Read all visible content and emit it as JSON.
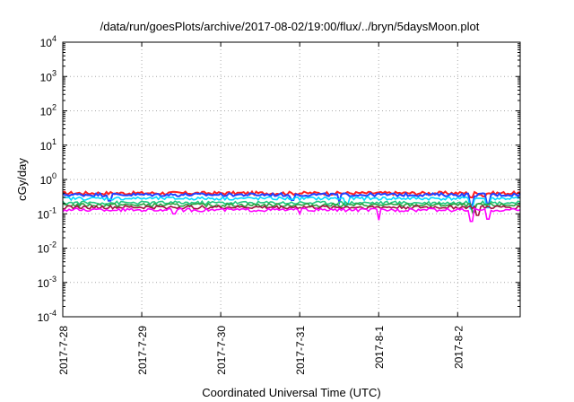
{
  "chart_data": {
    "type": "line",
    "title": "/data/run/goesPlots/archive/2017-08-02/19:00/flux/../bryn/5daysMoon.plot",
    "xlabel": "Coordinated Universal Time (UTC)",
    "ylabel": "cGy/day",
    "yscale": "log",
    "ylim": [
      0.0001,
      10000
    ],
    "y_ticks": [
      {
        "value": 0.0001,
        "base": "10",
        "exp": "-4"
      },
      {
        "value": 0.001,
        "base": "10",
        "exp": "-3"
      },
      {
        "value": 0.01,
        "base": "10",
        "exp": "-2"
      },
      {
        "value": 0.1,
        "base": "10",
        "exp": "-1"
      },
      {
        "value": 1,
        "base": "10",
        "exp": "0"
      },
      {
        "value": 10,
        "base": "10",
        "exp": "1"
      },
      {
        "value": 100,
        "base": "10",
        "exp": "2"
      },
      {
        "value": 1000,
        "base": "10",
        "exp": "3"
      },
      {
        "value": 10000,
        "base": "10",
        "exp": "4"
      }
    ],
    "xlim": [
      "2017-07-28T00:00",
      "2017-08-02T19:00"
    ],
    "x_ticks": [
      "2017-7-28",
      "2017-7-29",
      "2017-7-30",
      "2017-7-31",
      "2017-8-1",
      "2017-8-2"
    ],
    "grid": true,
    "series": [
      {
        "color": "#ff2020",
        "level": 0.4,
        "dips": [
          [
            "2017-08-02T04:00",
            0.3
          ],
          [
            "2017-08-02T08:00",
            0.32
          ]
        ]
      },
      {
        "color": "#2040ff",
        "level": 0.36,
        "dips": [
          [
            "2017-07-28T14:00",
            0.24
          ],
          [
            "2017-07-30T22:00",
            0.25
          ],
          [
            "2017-07-31T12:00",
            0.22
          ],
          [
            "2017-08-02T04:00",
            0.18
          ],
          [
            "2017-08-02T09:00",
            0.2
          ]
        ]
      },
      {
        "color": "#00d8ff",
        "level": 0.28,
        "dips": [
          [
            "2017-07-31T14:00",
            0.18
          ],
          [
            "2017-08-02T04:00",
            0.14
          ],
          [
            "2017-08-02T09:00",
            0.15
          ]
        ]
      },
      {
        "color": "#20c880",
        "level": 0.21,
        "dips": [
          [
            "2017-08-02T05:00",
            0.12
          ]
        ]
      },
      {
        "color": "#30a040",
        "level": 0.18,
        "dips": [
          [
            "2017-08-02T05:00",
            0.11
          ]
        ]
      },
      {
        "color": "#a01040",
        "level": 0.155,
        "dips": [
          [
            "2017-08-02T06:00",
            0.09
          ]
        ]
      },
      {
        "color": "#ff00ff",
        "level": 0.13,
        "dips": [
          [
            "2017-07-29T10:00",
            0.1
          ],
          [
            "2017-07-31T00:00",
            0.1
          ],
          [
            "2017-08-01T00:00",
            0.065
          ],
          [
            "2017-08-02T04:00",
            0.06
          ],
          [
            "2017-08-02T09:00",
            0.07
          ]
        ]
      }
    ]
  }
}
